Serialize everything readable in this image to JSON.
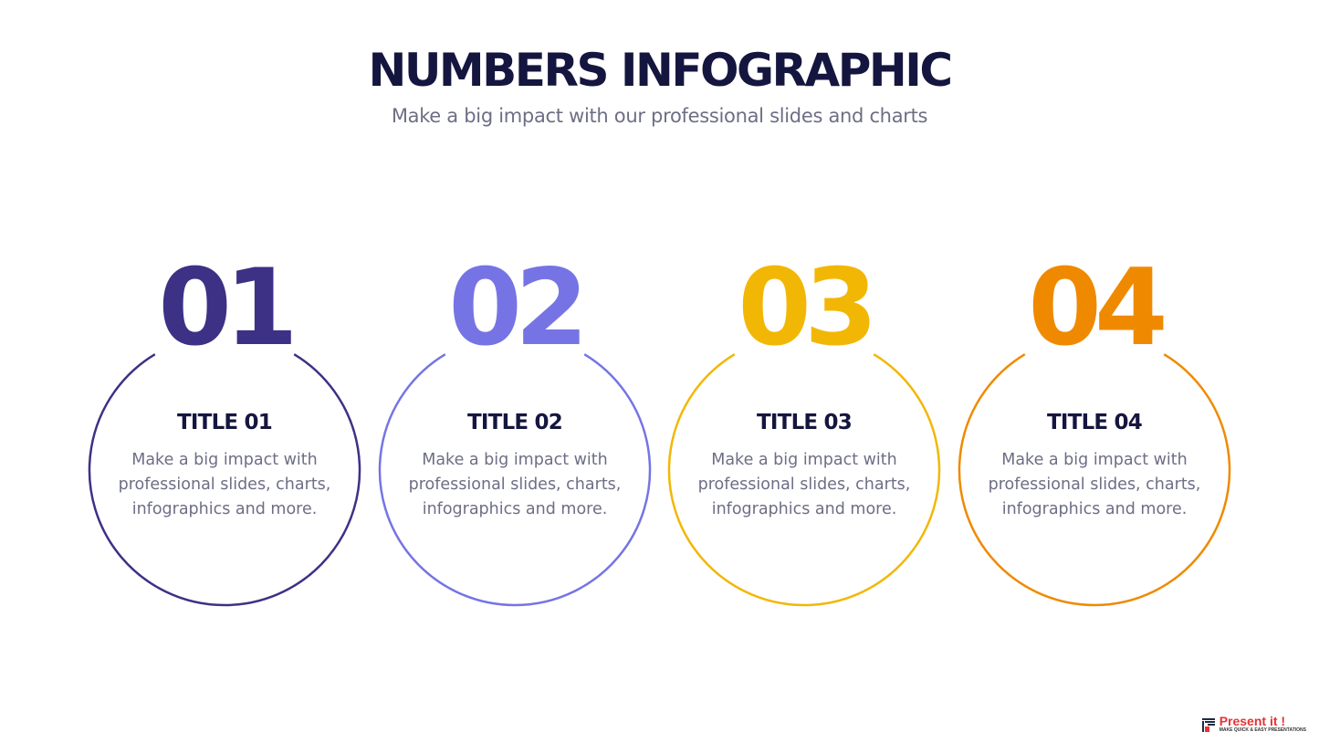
{
  "header": {
    "title": "NUMBERS INFOGRAPHIC",
    "subtitle": "Make a big impact with our professional slides and charts"
  },
  "items": [
    {
      "number": "01",
      "title": "TITLE 01",
      "description": "Make a big impact with professional slides, charts, infographics and more.",
      "color": "#3d3185"
    },
    {
      "number": "02",
      "title": "TITLE 02",
      "description": "Make a big impact with professional slides, charts, infographics and more.",
      "color": "#7674e4"
    },
    {
      "number": "03",
      "title": "TITLE 03",
      "description": "Make a big impact with professional slides, charts, infographics and more.",
      "color": "#f2b705"
    },
    {
      "number": "04",
      "title": "TITLE 04",
      "description": "Make a big impact with professional slides, charts, infographics and more.",
      "color": "#ef8a00"
    }
  ],
  "logo": {
    "name": "Present it !",
    "tagline": "MAKE QUICK & EASY PRESENTATIONS"
  }
}
